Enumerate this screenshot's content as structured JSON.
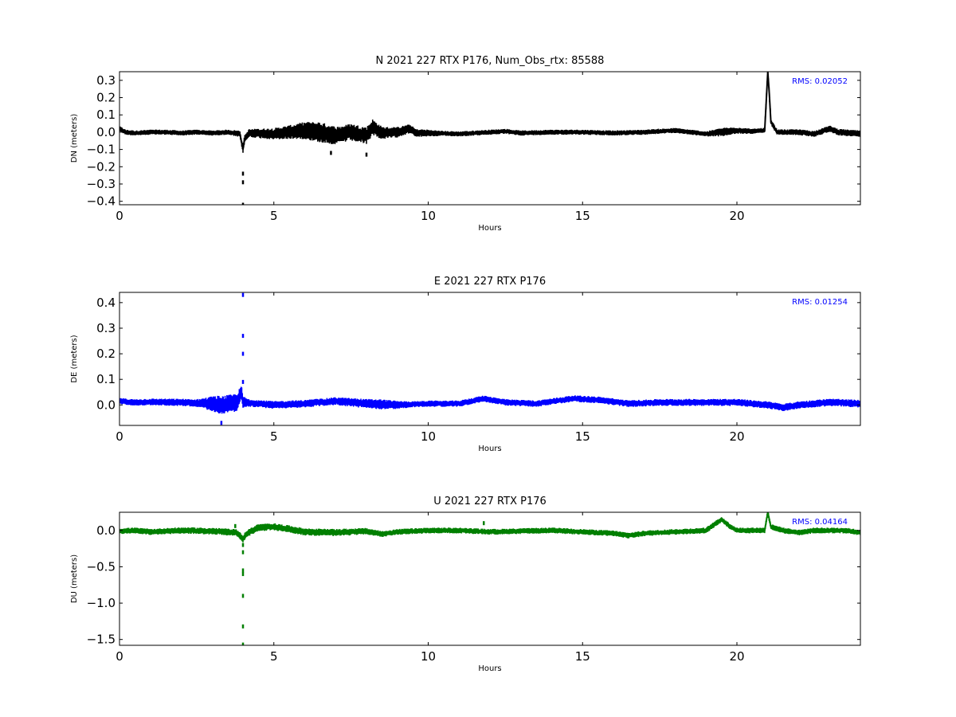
{
  "chart_data": [
    {
      "type": "line",
      "title": "N 2021 227 RTX  P176, Num_Obs_rtx: 85588",
      "xlabel": "Hours",
      "ylabel": "DN (meters)",
      "xlim": [
        0,
        24
      ],
      "ylim": [
        -0.42,
        0.35
      ],
      "xticks": [
        0,
        5,
        10,
        15,
        20
      ],
      "yticks": [
        0.3,
        0.2,
        0.1,
        0.0,
        -0.1,
        -0.2,
        -0.3,
        -0.4
      ],
      "ytick_labels": [
        "0.3",
        "0.2",
        "0.1",
        "0.0",
        "−0.1",
        "−0.2",
        "−0.3",
        "−0.4"
      ],
      "color": "#000000",
      "rms_label": "RMS:  0.02052",
      "rms_color": "#0000ff",
      "series": [
        {
          "values": [
            [
              0.0,
              0.02
            ],
            [
              0.2,
              0.0
            ],
            [
              0.5,
              -0.005
            ],
            [
              1.0,
              0.0
            ],
            [
              1.5,
              0.0
            ],
            [
              2.0,
              -0.005
            ],
            [
              2.5,
              0.0
            ],
            [
              3.0,
              -0.005
            ],
            [
              3.5,
              0.0
            ],
            [
              3.9,
              -0.01
            ],
            [
              4.0,
              -0.1
            ],
            [
              4.05,
              -0.04
            ],
            [
              4.2,
              -0.005
            ],
            [
              5.0,
              -0.01
            ],
            [
              5.5,
              0.0
            ],
            [
              6.0,
              0.01
            ],
            [
              6.5,
              0.0
            ],
            [
              7.0,
              -0.02
            ],
            [
              7.5,
              0.0
            ],
            [
              8.0,
              -0.02
            ],
            [
              8.2,
              0.03
            ],
            [
              8.5,
              -0.005
            ],
            [
              9.0,
              0.0
            ],
            [
              9.4,
              0.02
            ],
            [
              9.6,
              -0.005
            ],
            [
              10.0,
              -0.005
            ],
            [
              11.0,
              -0.01
            ],
            [
              12.0,
              0.0
            ],
            [
              12.5,
              0.005
            ],
            [
              13.0,
              -0.005
            ],
            [
              14.0,
              0.0
            ],
            [
              15.0,
              0.0
            ],
            [
              16.0,
              -0.005
            ],
            [
              17.0,
              0.0
            ],
            [
              18.0,
              0.01
            ],
            [
              19.0,
              -0.01
            ],
            [
              19.5,
              0.0
            ],
            [
              20.0,
              0.01
            ],
            [
              20.5,
              0.005
            ],
            [
              20.9,
              0.01
            ],
            [
              21.0,
              0.35
            ],
            [
              21.05,
              0.22
            ],
            [
              21.1,
              0.06
            ],
            [
              21.3,
              0.0
            ],
            [
              22.0,
              0.0
            ],
            [
              22.5,
              -0.01
            ],
            [
              23.0,
              0.02
            ],
            [
              23.3,
              0.0
            ],
            [
              24.0,
              -0.01
            ]
          ],
          "band": [
            [
              0,
              0.015
            ],
            [
              3.5,
              0.015
            ],
            [
              5.5,
              0.04
            ],
            [
              6.5,
              0.06
            ],
            [
              7.2,
              0.05
            ],
            [
              8.0,
              0.05
            ],
            [
              8.6,
              0.035
            ],
            [
              9.5,
              0.025
            ],
            [
              10.5,
              0.015
            ],
            [
              19.0,
              0.015
            ],
            [
              19.5,
              0.025
            ],
            [
              20.5,
              0.015
            ],
            [
              24,
              0.02
            ]
          ],
          "outliers": [
            [
              4.0,
              -0.24
            ],
            [
              4.0,
              -0.29
            ],
            [
              4.0,
              -0.42
            ],
            [
              8.0,
              -0.13
            ],
            [
              6.85,
              -0.12
            ]
          ]
        }
      ]
    },
    {
      "type": "line",
      "title": "E 2021 227 RTX  P176",
      "xlabel": "Hours",
      "ylabel": "DE (meters)",
      "xlim": [
        0,
        24
      ],
      "ylim": [
        -0.08,
        0.44
      ],
      "xticks": [
        0,
        5,
        10,
        15,
        20
      ],
      "yticks": [
        0.4,
        0.3,
        0.2,
        0.1,
        0.0
      ],
      "ytick_labels": [
        "0.4",
        "0.3",
        "0.2",
        "0.1",
        "0.0"
      ],
      "color": "#0000ff",
      "rms_label": "RMS:  0.01254",
      "rms_color": "#0000ff",
      "series": [
        {
          "values": [
            [
              0.0,
              0.015
            ],
            [
              0.5,
              0.01
            ],
            [
              1.0,
              0.012
            ],
            [
              2.0,
              0.01
            ],
            [
              3.0,
              0.005
            ],
            [
              3.3,
              0.0
            ],
            [
              3.8,
              0.01
            ],
            [
              3.95,
              0.05
            ],
            [
              4.0,
              0.01
            ],
            [
              4.5,
              0.005
            ],
            [
              5.0,
              0.0
            ],
            [
              6.0,
              0.005
            ],
            [
              7.0,
              0.015
            ],
            [
              8.0,
              0.005
            ],
            [
              9.0,
              0.0
            ],
            [
              10.0,
              0.005
            ],
            [
              11.0,
              0.005
            ],
            [
              11.8,
              0.025
            ],
            [
              12.5,
              0.01
            ],
            [
              13.5,
              0.005
            ],
            [
              14.7,
              0.025
            ],
            [
              15.5,
              0.02
            ],
            [
              16.5,
              0.005
            ],
            [
              17.5,
              0.01
            ],
            [
              19.0,
              0.01
            ],
            [
              20.0,
              0.01
            ],
            [
              21.0,
              0.0
            ],
            [
              21.5,
              -0.01
            ],
            [
              22.0,
              0.0
            ],
            [
              23.0,
              0.01
            ],
            [
              24.0,
              0.005
            ]
          ],
          "band": [
            [
              0,
              0.012
            ],
            [
              2.5,
              0.015
            ],
            [
              3.2,
              0.035
            ],
            [
              3.8,
              0.035
            ],
            [
              4.2,
              0.015
            ],
            [
              6.8,
              0.015
            ],
            [
              8.5,
              0.02
            ],
            [
              9.5,
              0.012
            ],
            [
              24,
              0.015
            ]
          ],
          "outliers": [
            [
              3.3,
              -0.07
            ],
            [
              4.0,
              0.43
            ],
            [
              4.0,
              0.27
            ],
            [
              4.0,
              0.2
            ],
            [
              4.0,
              0.09
            ]
          ]
        }
      ]
    },
    {
      "type": "line",
      "title": "U 2021 227 RTX  P176",
      "xlabel": "Hours",
      "ylabel": "DU (meters)",
      "xlim": [
        0,
        24
      ],
      "ylim": [
        -1.58,
        0.25
      ],
      "xticks": [
        0,
        5,
        10,
        15,
        20
      ],
      "yticks": [
        0.0,
        -0.5,
        -1.0,
        -1.5
      ],
      "ytick_labels": [
        "0.0",
        "−0.5",
        "−1.0",
        "−1.5"
      ],
      "color": "#007f00",
      "rms_label": "RMS:  0.04164",
      "rms_color": "#0000ff",
      "series": [
        {
          "values": [
            [
              0.0,
              -0.01
            ],
            [
              0.5,
              0.0
            ],
            [
              1.0,
              -0.02
            ],
            [
              2.0,
              0.0
            ],
            [
              3.0,
              -0.01
            ],
            [
              3.8,
              -0.03
            ],
            [
              4.0,
              -0.12
            ],
            [
              4.1,
              -0.05
            ],
            [
              4.5,
              0.04
            ],
            [
              5.0,
              0.05
            ],
            [
              5.5,
              0.02
            ],
            [
              6.0,
              -0.02
            ],
            [
              7.0,
              -0.03
            ],
            [
              8.0,
              -0.01
            ],
            [
              8.5,
              -0.05
            ],
            [
              9.0,
              -0.02
            ],
            [
              10.0,
              0.0
            ],
            [
              11.0,
              0.0
            ],
            [
              12.0,
              -0.02
            ],
            [
              13.0,
              -0.01
            ],
            [
              14.0,
              0.0
            ],
            [
              15.0,
              -0.02
            ],
            [
              16.0,
              -0.04
            ],
            [
              16.5,
              -0.07
            ],
            [
              17.0,
              -0.04
            ],
            [
              18.0,
              -0.02
            ],
            [
              19.0,
              0.0
            ],
            [
              19.5,
              0.15
            ],
            [
              19.8,
              0.05
            ],
            [
              20.0,
              0.0
            ],
            [
              20.9,
              0.0
            ],
            [
              21.0,
              0.25
            ],
            [
              21.1,
              0.05
            ],
            [
              21.5,
              0.0
            ],
            [
              22.0,
              -0.03
            ],
            [
              22.5,
              0.0
            ],
            [
              23.0,
              0.0
            ],
            [
              23.5,
              0.0
            ],
            [
              24.0,
              -0.03
            ]
          ],
          "band": [
            [
              0,
              0.04
            ],
            [
              4.2,
              0.05
            ],
            [
              5.5,
              0.05
            ],
            [
              7.0,
              0.05
            ],
            [
              9.0,
              0.04
            ],
            [
              19.0,
              0.04
            ],
            [
              24,
              0.04
            ]
          ],
          "outliers": [
            [
              4.0,
              -0.2
            ],
            [
              4.0,
              -0.3
            ],
            [
              4.0,
              -0.55
            ],
            [
              4.0,
              -0.6
            ],
            [
              4.0,
              -0.9
            ],
            [
              4.0,
              -1.32
            ],
            [
              4.0,
              -1.57
            ],
            [
              11.8,
              0.1
            ],
            [
              3.75,
              0.06
            ]
          ]
        }
      ]
    }
  ]
}
